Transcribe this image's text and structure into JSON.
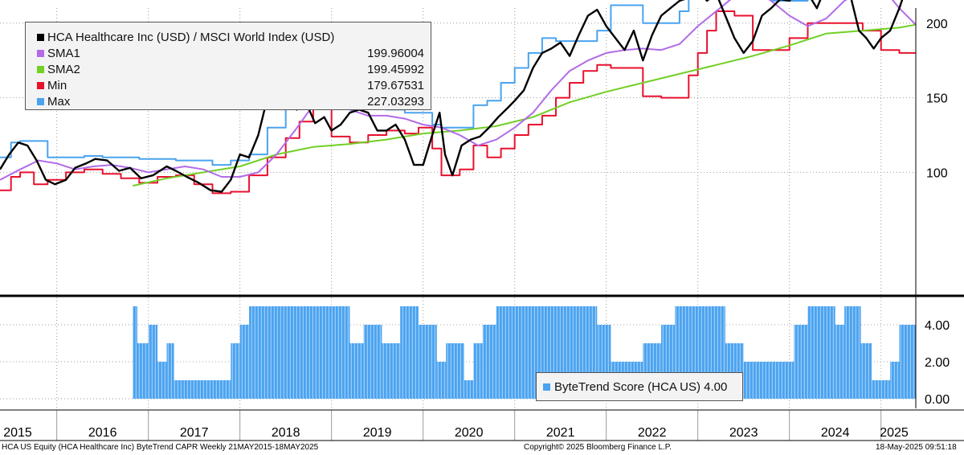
{
  "chart_data": [
    {
      "type": "line",
      "title": "",
      "ylim": [
        80,
        255
      ],
      "yticks": [
        100,
        150,
        200,
        250
      ],
      "x_range": [
        2015.38,
        2025.38
      ],
      "legend_placement": "top-left",
      "grid": true,
      "series": [
        {
          "name": "HCA Healthcare Inc (USD) / MSCI World Index (USD)",
          "legend_value": "",
          "color": "#000000",
          "x": [
            2015.38,
            2015.48,
            2015.58,
            2015.68,
            2015.78,
            2015.88,
            2015.98,
            2016.1,
            2016.2,
            2016.32,
            2016.42,
            2016.55,
            2016.68,
            2016.8,
            2016.92,
            2017.05,
            2017.2,
            2017.3,
            2017.42,
            2017.55,
            2017.68,
            2017.8,
            2017.9,
            2018.0,
            2018.1,
            2018.2,
            2018.3,
            2018.4,
            2018.5,
            2018.62,
            2018.72,
            2018.82,
            2018.92,
            2019.0,
            2019.1,
            2019.2,
            2019.3,
            2019.4,
            2019.5,
            2019.6,
            2019.7,
            2019.8,
            2019.9,
            2020.0,
            2020.1,
            2020.18,
            2020.24,
            2020.32,
            2020.42,
            2020.52,
            2020.62,
            2020.72,
            2020.82,
            2020.92,
            2021.0,
            2021.1,
            2021.2,
            2021.3,
            2021.4,
            2021.5,
            2021.6,
            2021.7,
            2021.8,
            2021.9,
            2022.0,
            2022.1,
            2022.2,
            2022.3,
            2022.4,
            2022.5,
            2022.6,
            2022.7,
            2022.8,
            2022.9,
            2023.0,
            2023.1,
            2023.2,
            2023.3,
            2023.4,
            2023.5,
            2023.6,
            2023.7,
            2023.8,
            2023.9,
            2024.0,
            2024.1,
            2024.2,
            2024.3,
            2024.4,
            2024.5,
            2024.6,
            2024.68,
            2024.76,
            2024.84,
            2024.92,
            2025.0,
            2025.1,
            2025.2,
            2025.3,
            2025.38
          ],
          "y": [
            102,
            112,
            120,
            118,
            108,
            95,
            92,
            95,
            103,
            106,
            109,
            108,
            101,
            103,
            96,
            98,
            104,
            101,
            97,
            93,
            88,
            87,
            95,
            112,
            110,
            125,
            150,
            157,
            153,
            142,
            147,
            133,
            137,
            128,
            132,
            140,
            142,
            140,
            128,
            128,
            132,
            122,
            105,
            105,
            125,
            140,
            112,
            98,
            118,
            122,
            124,
            130,
            137,
            143,
            148,
            155,
            170,
            180,
            183,
            187,
            178,
            192,
            205,
            209,
            198,
            190,
            182,
            195,
            175,
            192,
            205,
            210,
            215,
            217,
            222,
            215,
            220,
            205,
            190,
            180,
            188,
            205,
            210,
            216,
            215,
            223,
            220,
            210,
            225,
            232,
            250,
            215,
            195,
            190,
            183,
            190,
            195,
            210,
            228,
            227
          ],
          "legend_value_shown": ""
        },
        {
          "name": "SMA1",
          "legend_value": "199.96004",
          "color": "#b26be8",
          "x": [
            2015.38,
            2015.6,
            2015.8,
            2016.0,
            2016.2,
            2016.4,
            2016.6,
            2016.8,
            2017.0,
            2017.2,
            2017.4,
            2017.6,
            2017.8,
            2018.0,
            2018.2,
            2018.4,
            2018.6,
            2018.8,
            2019.0,
            2019.2,
            2019.4,
            2019.6,
            2019.8,
            2020.0,
            2020.2,
            2020.4,
            2020.6,
            2020.8,
            2021.0,
            2021.2,
            2021.4,
            2021.6,
            2021.8,
            2022.0,
            2022.2,
            2022.4,
            2022.6,
            2022.8,
            2023.0,
            2023.2,
            2023.4,
            2023.6,
            2023.8,
            2024.0,
            2024.2,
            2024.4,
            2024.6,
            2024.8,
            2025.0,
            2025.2,
            2025.38
          ],
          "y": [
            95,
            102,
            108,
            106,
            102,
            104,
            105,
            103,
            100,
            102,
            104,
            102,
            97,
            97,
            100,
            112,
            128,
            145,
            146,
            142,
            138,
            138,
            136,
            132,
            130,
            125,
            118,
            122,
            130,
            140,
            155,
            168,
            175,
            180,
            182,
            183,
            182,
            186,
            198,
            208,
            218,
            223,
            215,
            205,
            198,
            203,
            215,
            222,
            225,
            210,
            199
          ]
        },
        {
          "name": "SMA2",
          "legend_value": "199.45992",
          "color": "#72cf24",
          "x": [
            2016.83,
            2017.2,
            2017.6,
            2018.0,
            2018.4,
            2018.8,
            2019.2,
            2019.6,
            2020.0,
            2020.4,
            2020.8,
            2021.2,
            2021.6,
            2022.0,
            2022.4,
            2022.8,
            2023.2,
            2023.6,
            2024.0,
            2024.4,
            2024.8,
            2025.0,
            2025.2,
            2025.38
          ],
          "y": [
            91,
            96,
            100,
            104,
            112,
            117,
            119,
            122,
            126,
            128,
            131,
            137,
            147,
            154,
            160,
            166,
            172,
            178,
            185,
            193,
            195,
            196,
            197,
            199
          ]
        },
        {
          "name": "Min",
          "legend_value": "179.67531",
          "color": "#e8112d",
          "x": [
            2015.38,
            2015.5,
            2015.6,
            2015.75,
            2015.9,
            2016.1,
            2016.3,
            2016.5,
            2016.7,
            2016.9,
            2017.1,
            2017.3,
            2017.5,
            2017.7,
            2017.9,
            2018.1,
            2018.3,
            2018.5,
            2018.65,
            2018.8,
            2019.0,
            2019.2,
            2019.4,
            2019.6,
            2019.8,
            2019.95,
            2020.1,
            2020.2,
            2020.4,
            2020.55,
            2020.7,
            2020.85,
            2021.0,
            2021.15,
            2021.3,
            2021.45,
            2021.6,
            2021.75,
            2021.9,
            2022.05,
            2022.2,
            2022.4,
            2022.6,
            2022.8,
            2022.9,
            2023.0,
            2023.1,
            2023.2,
            2023.4,
            2023.6,
            2023.8,
            2024.0,
            2024.2,
            2024.4,
            2024.6,
            2024.8,
            2025.0,
            2025.2,
            2025.38
          ],
          "y": [
            88,
            97,
            100,
            92,
            95,
            100,
            102,
            99,
            96,
            93,
            97,
            98,
            92,
            86,
            87,
            98,
            110,
            123,
            134,
            143,
            124,
            120,
            125,
            128,
            126,
            130,
            116,
            98,
            102,
            118,
            110,
            116,
            125,
            132,
            138,
            150,
            160,
            168,
            172,
            170,
            170,
            151,
            150,
            150,
            165,
            180,
            195,
            208,
            205,
            182,
            182,
            190,
            200,
            200,
            200,
            195,
            182,
            180,
            180
          ]
        },
        {
          "name": "Max",
          "legend_value": "227.03293",
          "color": "#4aa3f0",
          "x": [
            2015.38,
            2015.5,
            2015.6,
            2015.75,
            2015.9,
            2016.1,
            2016.3,
            2016.5,
            2016.7,
            2016.9,
            2017.1,
            2017.3,
            2017.5,
            2017.7,
            2017.9,
            2018.1,
            2018.3,
            2018.5,
            2018.65,
            2018.8,
            2019.0,
            2019.2,
            2019.4,
            2019.6,
            2019.8,
            2019.95,
            2020.1,
            2020.2,
            2020.4,
            2020.55,
            2020.7,
            2020.85,
            2021.0,
            2021.15,
            2021.3,
            2021.45,
            2021.6,
            2021.75,
            2021.9,
            2022.05,
            2022.2,
            2022.4,
            2022.6,
            2022.8,
            2022.9,
            2023.0,
            2023.1,
            2023.2,
            2023.4,
            2023.6,
            2023.8,
            2024.0,
            2024.2,
            2024.4,
            2024.6,
            2024.8,
            2025.0,
            2025.2,
            2025.38
          ],
          "y": [
            110,
            120,
            121,
            121,
            110,
            110,
            111,
            110,
            110,
            109,
            109,
            108,
            108,
            105,
            108,
            112,
            130,
            145,
            160,
            158,
            150,
            152,
            145,
            142,
            140,
            140,
            132,
            130,
            130,
            145,
            148,
            160,
            170,
            180,
            190,
            188,
            188,
            188,
            195,
            212,
            212,
            200,
            200,
            208,
            220,
            230,
            230,
            232,
            230,
            220,
            215,
            215,
            225,
            230,
            230,
            250,
            250,
            225,
            227
          ]
        }
      ]
    },
    {
      "type": "bar",
      "title": "",
      "ylim": [
        0,
        5.4
      ],
      "yticks": [
        "0.00",
        "2.00",
        "4.00"
      ],
      "legend_placement": "bottom-center",
      "grid": true,
      "series": [
        {
          "name": "ByteTrend Score (HCA US)",
          "legend_value": "4.00",
          "color": "#4aa3f0",
          "segments": [
            {
              "from": 2016.83,
              "to": 2016.88,
              "value": 5
            },
            {
              "from": 2016.88,
              "to": 2017.0,
              "value": 3
            },
            {
              "from": 2017.0,
              "to": 2017.1,
              "value": 4
            },
            {
              "from": 2017.1,
              "to": 2017.2,
              "value": 2
            },
            {
              "from": 2017.2,
              "to": 2017.28,
              "value": 3
            },
            {
              "from": 2017.28,
              "to": 2017.9,
              "value": 1
            },
            {
              "from": 2017.9,
              "to": 2018.0,
              "value": 3
            },
            {
              "from": 2018.0,
              "to": 2018.1,
              "value": 4
            },
            {
              "from": 2018.1,
              "to": 2019.2,
              "value": 5
            },
            {
              "from": 2019.2,
              "to": 2019.35,
              "value": 3
            },
            {
              "from": 2019.35,
              "to": 2019.55,
              "value": 4
            },
            {
              "from": 2019.55,
              "to": 2019.75,
              "value": 3
            },
            {
              "from": 2019.75,
              "to": 2019.95,
              "value": 5
            },
            {
              "from": 2019.95,
              "to": 2020.15,
              "value": 4
            },
            {
              "from": 2020.15,
              "to": 2020.25,
              "value": 2
            },
            {
              "from": 2020.25,
              "to": 2020.45,
              "value": 3
            },
            {
              "from": 2020.45,
              "to": 2020.55,
              "value": 1
            },
            {
              "from": 2020.55,
              "to": 2020.65,
              "value": 3
            },
            {
              "from": 2020.65,
              "to": 2020.8,
              "value": 4
            },
            {
              "from": 2020.8,
              "to": 2021.9,
              "value": 5
            },
            {
              "from": 2021.9,
              "to": 2022.05,
              "value": 4
            },
            {
              "from": 2022.05,
              "to": 2022.4,
              "value": 2
            },
            {
              "from": 2022.4,
              "to": 2022.6,
              "value": 3
            },
            {
              "from": 2022.6,
              "to": 2022.75,
              "value": 4
            },
            {
              "from": 2022.75,
              "to": 2023.3,
              "value": 5
            },
            {
              "from": 2023.3,
              "to": 2023.5,
              "value": 3
            },
            {
              "from": 2023.5,
              "to": 2024.05,
              "value": 2
            },
            {
              "from": 2024.05,
              "to": 2024.2,
              "value": 4
            },
            {
              "from": 2024.2,
              "to": 2024.5,
              "value": 5
            },
            {
              "from": 2024.5,
              "to": 2024.6,
              "value": 4
            },
            {
              "from": 2024.6,
              "to": 2024.78,
              "value": 5
            },
            {
              "from": 2024.78,
              "to": 2024.9,
              "value": 3
            },
            {
              "from": 2024.9,
              "to": 2025.1,
              "value": 1
            },
            {
              "from": 2025.1,
              "to": 2025.2,
              "value": 2
            },
            {
              "from": 2025.2,
              "to": 2025.38,
              "value": 4
            }
          ]
        }
      ]
    }
  ],
  "x_axis": {
    "years": [
      "2015",
      "2016",
      "2017",
      "2018",
      "2019",
      "2020",
      "2021",
      "2022",
      "2023",
      "2024",
      "2025"
    ]
  },
  "legend": {
    "title": "HCA Healthcare Inc (USD) / MSCI World Index (USD)",
    "items": [
      {
        "name": "SMA1",
        "value": "199.96004",
        "color": "#b26be8"
      },
      {
        "name": "SMA2",
        "value": "199.45992",
        "color": "#72cf24"
      },
      {
        "name": "Min",
        "value": "179.67531",
        "color": "#e8112d"
      },
      {
        "name": "Max",
        "value": "227.03293",
        "color": "#4aa3f0"
      }
    ]
  },
  "score_legend": "ByteTrend Score (HCA US) 4.00",
  "footer": {
    "left": "HCA US Equity (HCA Healthcare Inc) ByteTrend CAPR  Weekly 21MAY2015-18MAY2025",
    "center": "Copyright© 2025 Bloomberg Finance L.P.",
    "right": "18-May-2025 09:51:18"
  }
}
